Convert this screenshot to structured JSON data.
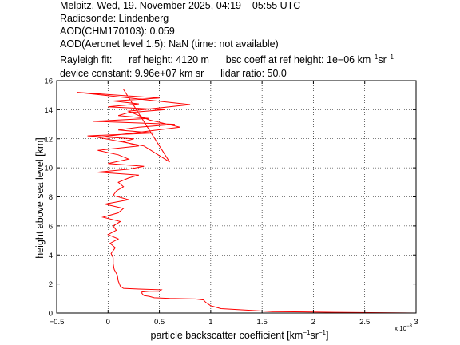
{
  "header": {
    "line1": "Melpitz, Wed, 19. November 2025, 04:19 – 05:55 UTC",
    "line2": "Radiosonde: Lindenberg",
    "line3": "AOD(CHM170103): 0.059",
    "line4": "AOD(Aeronet level 1.5): NaN   (time: not available)",
    "rayleigh_label": "Rayleigh fit:",
    "ref_height": "ref height: 4120 m",
    "bsc_coeff_prefix": "bsc coeff at ref height: 1e−06 km",
    "bsc_coeff_sup1": "−1",
    "bsc_coeff_mid": "sr",
    "bsc_coeff_sup2": "−1",
    "device_constant": "device constant: 9.96e+07 km sr",
    "lidar_ratio": "lidar ratio: 50.0"
  },
  "chart_data": {
    "type": "line",
    "title": "",
    "xlabel_prefix": "particle backscatter coefficient [km",
    "xlabel_sup1": "−1",
    "xlabel_mid": "sr",
    "xlabel_sup2": "−1",
    "xlabel_suffix": "]",
    "ylabel": "height above sea level [km]",
    "x_scale_note_prefix": "x 10",
    "x_scale_note_exp": "−3",
    "xlim": [
      -0.5,
      3
    ],
    "ylim": [
      0,
      16
    ],
    "grid": true,
    "xticks": [
      "−0.5",
      "0",
      "0.5",
      "1",
      "1.5",
      "2",
      "2.5",
      "3"
    ],
    "yticks": [
      "0",
      "2",
      "4",
      "6",
      "8",
      "10",
      "12",
      "14",
      "16"
    ],
    "series": [
      {
        "color": "#ff0000",
        "x": [
          3.0,
          2.2,
          1.6,
          1.35,
          1.1,
          1.0,
          0.95,
          0.93,
          0.85,
          0.6,
          0.45,
          0.4,
          0.35,
          0.33,
          0.33,
          0.4,
          0.5,
          0.52,
          0.3,
          0.15,
          0.12,
          0.1,
          0.09,
          0.06,
          0.05,
          0.05,
          0.03,
          0.07,
          0.02,
          0.1,
          0.0,
          0.08,
          0.05,
          0.12,
          -0.05,
          0.1,
          0.15,
          -0.03,
          0.2,
          0.05,
          0.08,
          0.15,
          0.1,
          0.2,
          0.3,
          -0.1,
          0.2,
          0.35,
          0.0,
          0.2,
          0.1,
          -0.1,
          0.3,
          0.15,
          0.25,
          -0.2,
          0.45,
          0.1,
          0.3,
          0.65,
          -0.15,
          0.4,
          0.1,
          0.2,
          0.55,
          0.0,
          0.3,
          0.05,
          0.5,
          0.1,
          -0.3,
          0.8,
          0.2,
          0.4,
          0.7,
          -0.1,
          0.35,
          0.6,
          0.15
        ],
        "y": [
          0.0,
          0.05,
          0.1,
          0.2,
          0.3,
          0.5,
          0.75,
          0.9,
          0.97,
          1.0,
          1.05,
          1.15,
          1.2,
          1.35,
          1.45,
          1.5,
          1.5,
          1.6,
          1.65,
          1.7,
          1.85,
          2.2,
          2.6,
          3.0,
          3.4,
          3.8,
          4.1,
          4.5,
          4.8,
          5.1,
          5.4,
          5.7,
          6.0,
          6.3,
          6.6,
          6.9,
          7.2,
          7.5,
          7.8,
          8.1,
          8.4,
          8.7,
          9.0,
          9.3,
          9.5,
          9.7,
          9.9,
          10.1,
          10.3,
          10.6,
          10.9,
          11.2,
          11.5,
          11.8,
          12.0,
          12.2,
          12.4,
          12.6,
          12.8,
          13.0,
          13.2,
          13.4,
          13.6,
          13.8,
          14.0,
          14.2,
          14.4,
          14.6,
          14.8,
          15.0,
          15.2,
          14.35,
          13.9,
          13.3,
          12.8,
          12.1,
          11.5,
          10.4,
          15.4
        ]
      }
    ]
  }
}
